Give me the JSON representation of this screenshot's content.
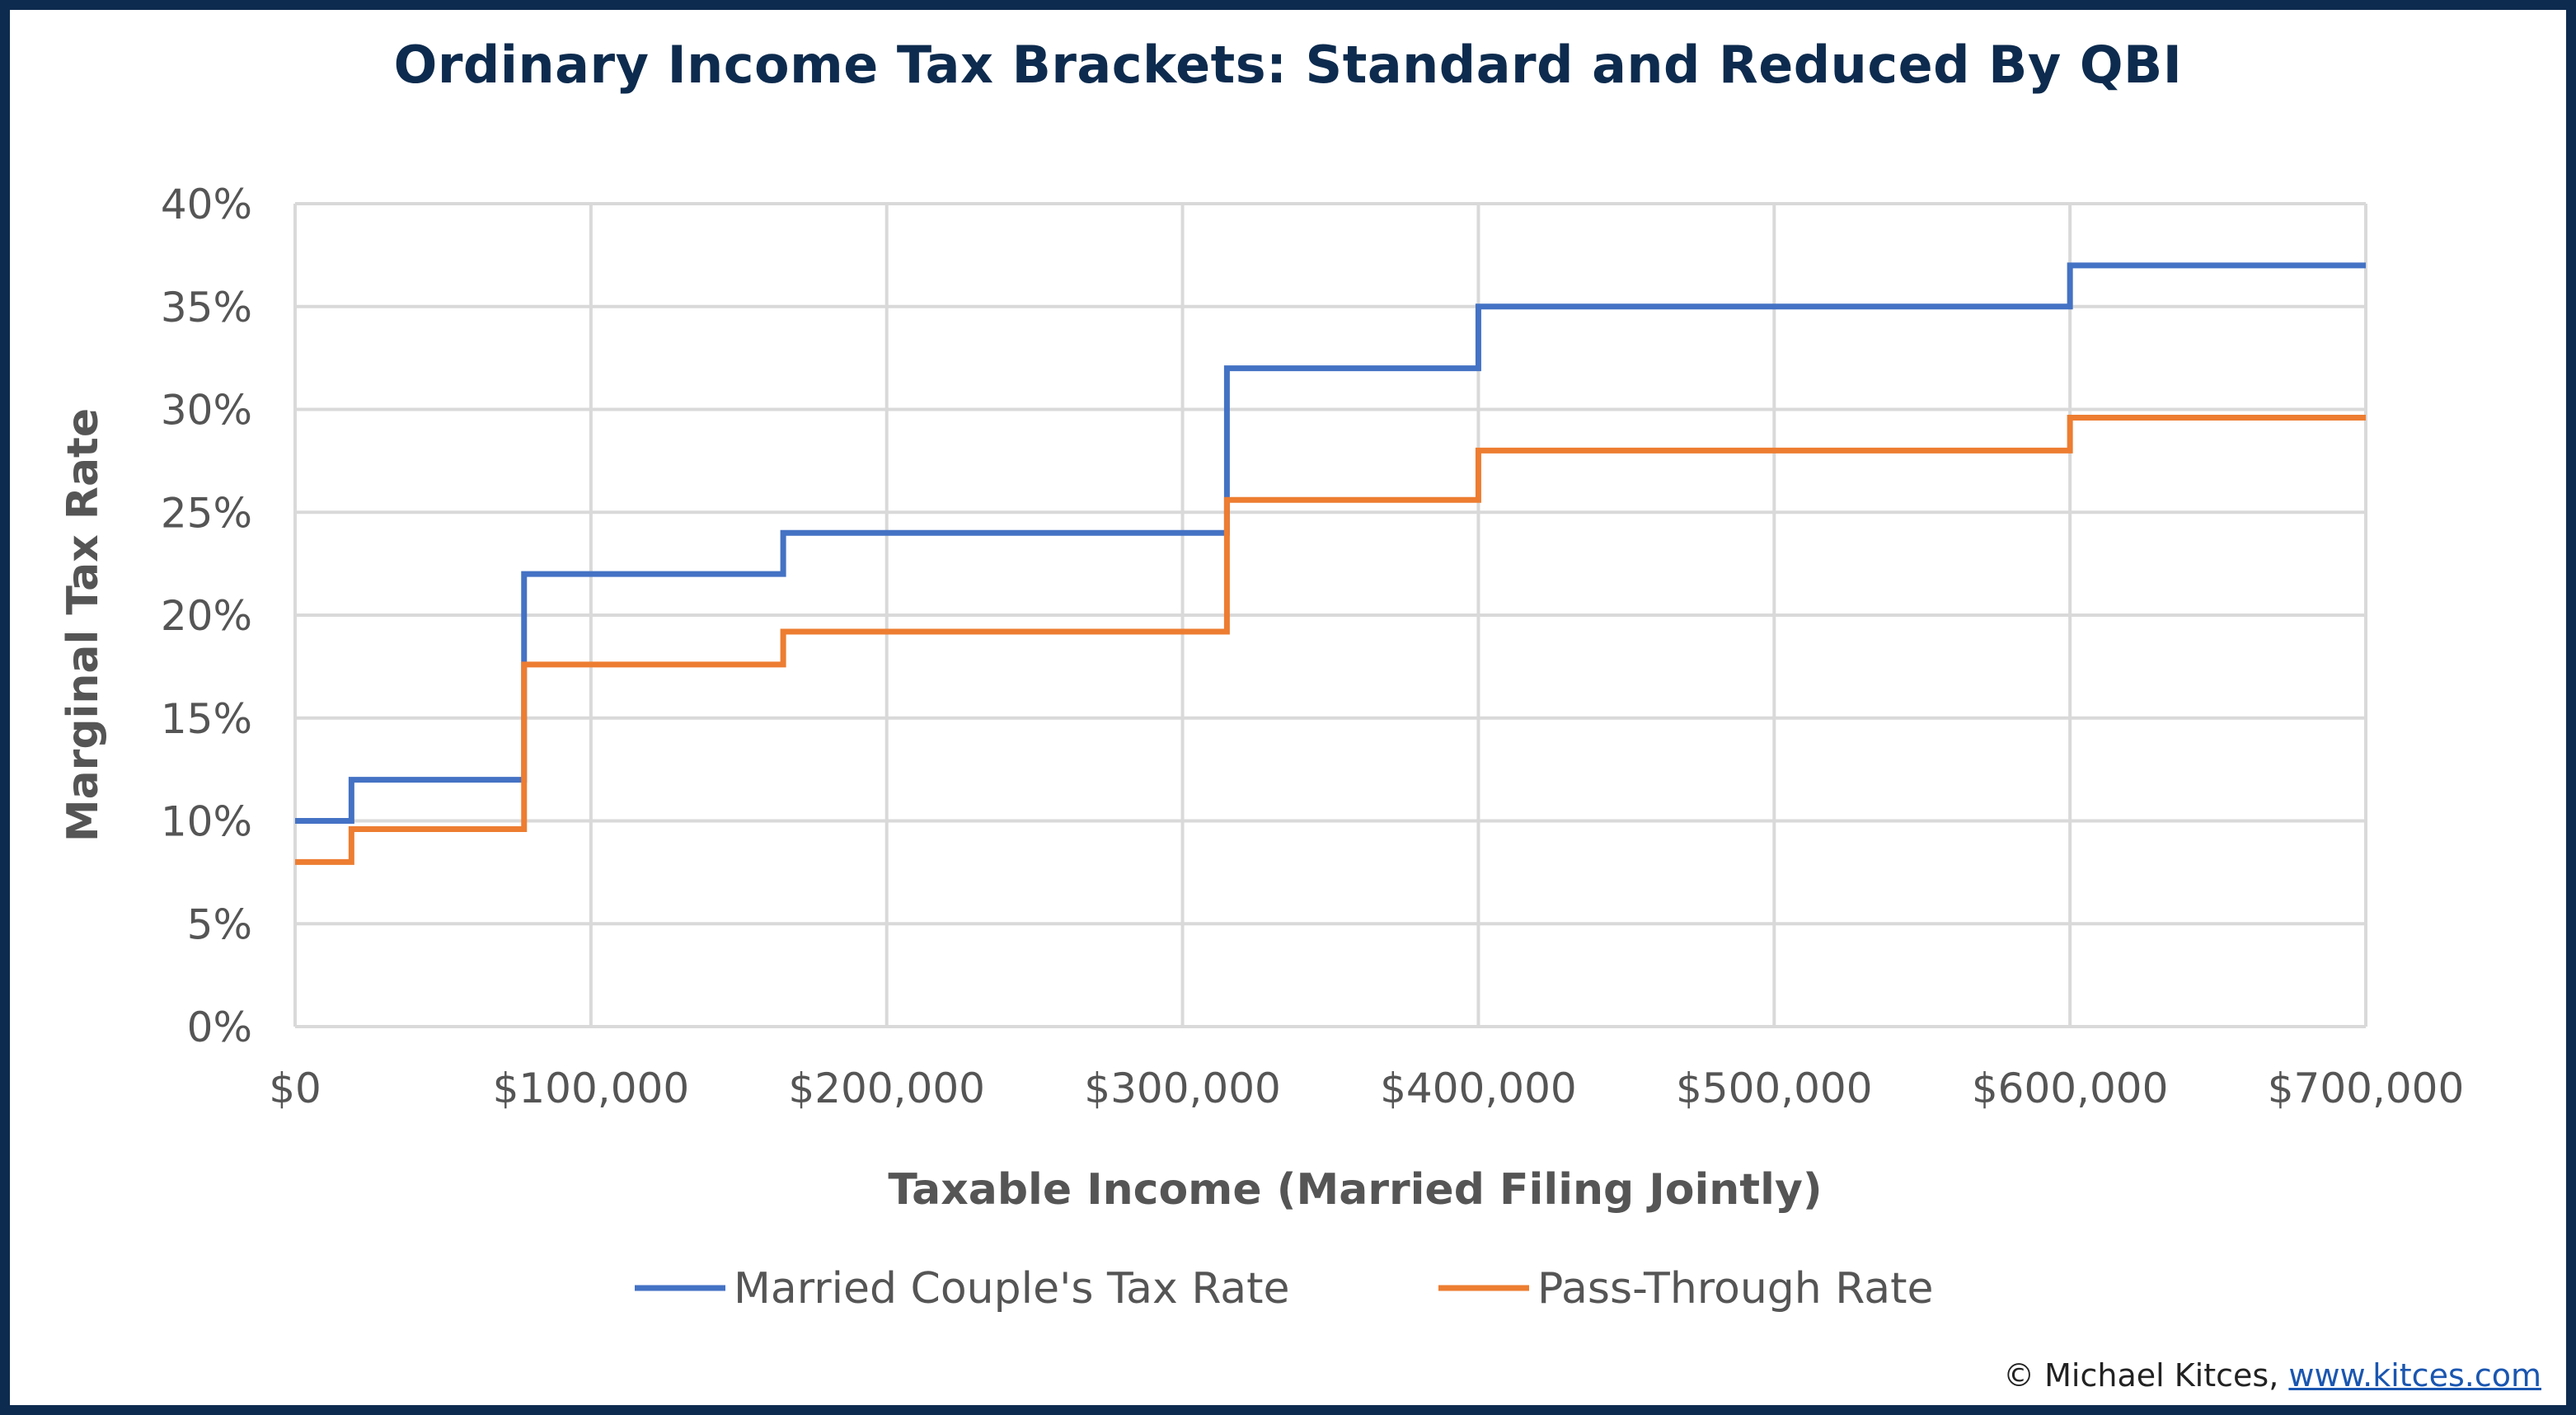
{
  "chart_data": {
    "type": "line",
    "step": "post",
    "title": "Ordinary Income Tax Brackets: Standard and Reduced By QBI",
    "xlabel": "Taxable Income (Married Filing Jointly)",
    "ylabel": "Marginal Tax Rate",
    "xlim": [
      0,
      700000
    ],
    "ylim": [
      0,
      0.4
    ],
    "grid": true,
    "legend_position": "bottom",
    "x_ticks": [
      0,
      100000,
      200000,
      300000,
      400000,
      500000,
      600000,
      700000
    ],
    "x_tick_labels": [
      "$0",
      "$100,000",
      "$200,000",
      "$300,000",
      "$400,000",
      "$500,000",
      "$600,000",
      "$700,000"
    ],
    "y_ticks": [
      0,
      0.05,
      0.1,
      0.15,
      0.2,
      0.25,
      0.3,
      0.35,
      0.4
    ],
    "y_tick_labels": [
      "0%",
      "5%",
      "10%",
      "15%",
      "20%",
      "25%",
      "30%",
      "35%",
      "40%"
    ],
    "series": [
      {
        "name": "Married Couple's Tax Rate",
        "color": "#4472c4",
        "x": [
          0,
          19050,
          77400,
          165000,
          315000,
          400000,
          600000,
          700000
        ],
        "y": [
          0.1,
          0.12,
          0.22,
          0.24,
          0.32,
          0.35,
          0.37,
          0.37
        ]
      },
      {
        "name": "Pass-Through Rate",
        "color": "#ed7d31",
        "x": [
          0,
          19050,
          77400,
          165000,
          315000,
          400000,
          600000,
          700000
        ],
        "y": [
          0.08,
          0.096,
          0.176,
          0.192,
          0.256,
          0.28,
          0.296,
          0.296
        ]
      }
    ]
  },
  "footer": {
    "copyright_text": "© Michael Kitces,",
    "link_text": "www.kitces.com"
  }
}
